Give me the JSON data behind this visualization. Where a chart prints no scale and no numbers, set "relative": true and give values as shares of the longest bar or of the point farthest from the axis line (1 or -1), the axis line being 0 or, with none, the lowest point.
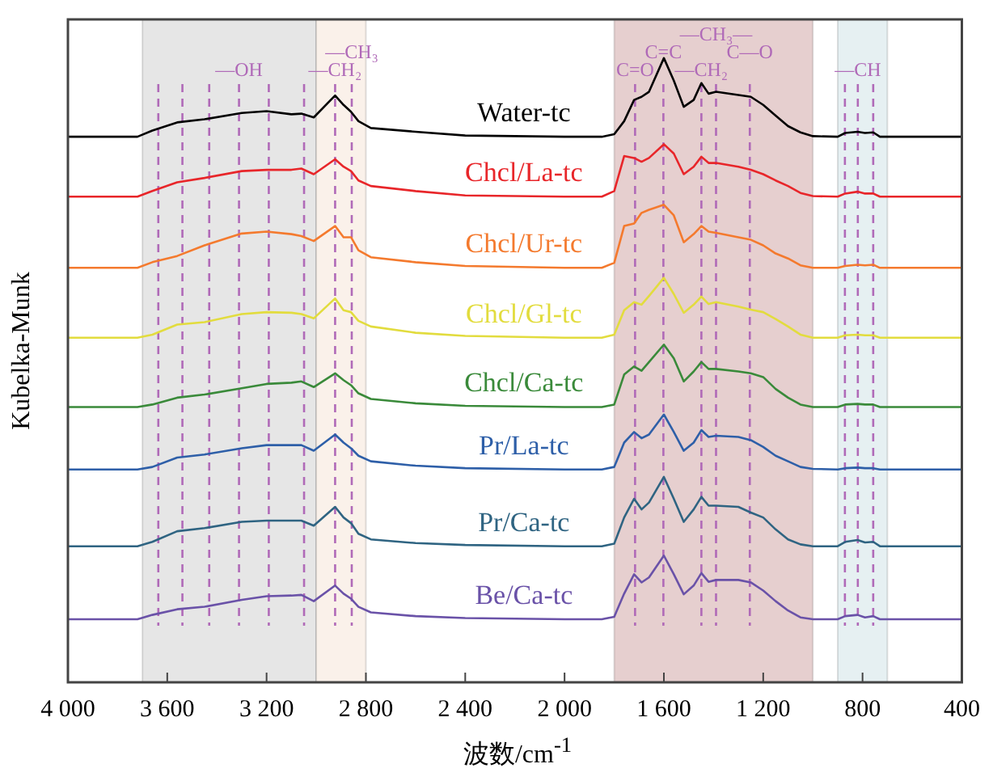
{
  "chart_data": {
    "type": "line",
    "relative": true,
    "xlabel": "波数/cm$^{-1}$",
    "ylabel": "Kubelka-Munk",
    "xlim": [
      4000,
      400
    ],
    "xticks": [
      {
        "value": 4000,
        "label": "4 000"
      },
      {
        "value": 3600,
        "label": "3 600"
      },
      {
        "value": 3200,
        "label": "3 200"
      },
      {
        "value": 2800,
        "label": "2 800"
      },
      {
        "value": 2400,
        "label": "2 400"
      },
      {
        "value": 2000,
        "label": "2 000"
      },
      {
        "value": 1600,
        "label": "1 600"
      },
      {
        "value": 1200,
        "label": "1 200"
      },
      800,
      400
    ],
    "x": [
      4000,
      3720,
      3660,
      3560,
      3450,
      3300,
      3200,
      3100,
      3060,
      3010,
      2924,
      2890,
      2860,
      2830,
      2780,
      2600,
      2400,
      2000,
      1850,
      1800,
      1760,
      1720,
      1690,
      1660,
      1600,
      1560,
      1520,
      1480,
      1449,
      1420,
      1390,
      1300,
      1250,
      1200,
      1150,
      1100,
      1050,
      1000,
      900,
      870,
      820,
      790,
      757,
      730,
      400
    ],
    "series": [
      {
        "name": "Water-tc",
        "color": "#000000",
        "values": [
          0.874,
          0.874,
          0.884,
          0.897,
          0.902,
          0.912,
          0.915,
          0.91,
          0.911,
          0.905,
          0.94,
          0.925,
          0.914,
          0.899,
          0.888,
          0.882,
          0.876,
          0.874,
          0.874,
          0.878,
          0.899,
          0.933,
          0.938,
          0.946,
          1,
          0.964,
          0.922,
          0.933,
          0.96,
          0.943,
          0.946,
          0.941,
          0.938,
          0.925,
          0.908,
          0.891,
          0.881,
          0.875,
          0.874,
          0.88,
          0.882,
          0.88,
          0.881,
          0.874,
          0.874
        ]
      },
      {
        "name": "Chcl/La-tc",
        "color": "#e8262a",
        "values": [
          0.778,
          0.778,
          0.787,
          0.801,
          0.808,
          0.819,
          0.821,
          0.821,
          0.823,
          0.814,
          0.838,
          0.826,
          0.819,
          0.804,
          0.795,
          0.787,
          0.78,
          0.778,
          0.778,
          0.787,
          0.843,
          0.84,
          0.834,
          0.84,
          0.862,
          0.847,
          0.814,
          0.826,
          0.842,
          0.832,
          0.832,
          0.826,
          0.821,
          0.814,
          0.804,
          0.795,
          0.784,
          0.779,
          0.778,
          0.783,
          0.786,
          0.783,
          0.783,
          0.778,
          0.778
        ]
      },
      {
        "name": "Chcl/Ur-tc",
        "color": "#f47a2e",
        "values": [
          0.664,
          0.664,
          0.673,
          0.683,
          0.7,
          0.719,
          0.722,
          0.718,
          0.715,
          0.707,
          0.731,
          0.713,
          0.713,
          0.692,
          0.681,
          0.673,
          0.667,
          0.664,
          0.664,
          0.672,
          0.731,
          0.735,
          0.752,
          0.757,
          0.765,
          0.748,
          0.705,
          0.718,
          0.731,
          0.722,
          0.72,
          0.713,
          0.709,
          0.7,
          0.687,
          0.679,
          0.668,
          0.664,
          0.664,
          0.667,
          0.669,
          0.668,
          0.669,
          0.664,
          0.664
        ]
      },
      {
        "name": "Chcl/Gl-tc",
        "color": "#e2dc3e",
        "values": [
          0.552,
          0.552,
          0.557,
          0.573,
          0.577,
          0.59,
          0.593,
          0.592,
          0.59,
          0.583,
          0.615,
          0.596,
          0.593,
          0.579,
          0.57,
          0.56,
          0.555,
          0.552,
          0.552,
          0.557,
          0.596,
          0.609,
          0.605,
          0.619,
          0.648,
          0.622,
          0.592,
          0.605,
          0.618,
          0.606,
          0.609,
          0.602,
          0.597,
          0.593,
          0.582,
          0.57,
          0.557,
          0.552,
          0.552,
          0.556,
          0.557,
          0.556,
          0.556,
          0.552,
          0.552
        ]
      },
      {
        "name": "Chcl/Ca-tc",
        "color": "#3a8a3a",
        "values": [
          0.441,
          0.441,
          0.445,
          0.456,
          0.461,
          0.471,
          0.478,
          0.48,
          0.482,
          0.473,
          0.495,
          0.484,
          0.476,
          0.463,
          0.454,
          0.447,
          0.443,
          0.441,
          0.441,
          0.445,
          0.493,
          0.506,
          0.499,
          0.513,
          0.541,
          0.519,
          0.482,
          0.498,
          0.513,
          0.502,
          0.502,
          0.498,
          0.495,
          0.489,
          0.47,
          0.456,
          0.445,
          0.441,
          0.441,
          0.445,
          0.446,
          0.445,
          0.445,
          0.441,
          0.441
        ]
      },
      {
        "name": "Pr/La-tc",
        "color": "#2e5fa8",
        "values": [
          0.341,
          0.341,
          0.345,
          0.36,
          0.365,
          0.375,
          0.38,
          0.38,
          0.38,
          0.371,
          0.397,
          0.384,
          0.375,
          0.363,
          0.354,
          0.347,
          0.343,
          0.341,
          0.341,
          0.345,
          0.384,
          0.401,
          0.391,
          0.397,
          0.429,
          0.401,
          0.371,
          0.384,
          0.404,
          0.393,
          0.395,
          0.393,
          0.388,
          0.377,
          0.363,
          0.354,
          0.345,
          0.342,
          0.341,
          0.343,
          0.344,
          0.343,
          0.343,
          0.341,
          0.341
        ]
      },
      {
        "name": "Pr/Ca-tc",
        "color": "#2f6482",
        "values": [
          0.218,
          0.218,
          0.225,
          0.242,
          0.247,
          0.257,
          0.259,
          0.259,
          0.259,
          0.251,
          0.281,
          0.264,
          0.255,
          0.238,
          0.229,
          0.223,
          0.22,
          0.218,
          0.218,
          0.222,
          0.264,
          0.294,
          0.277,
          0.288,
          0.329,
          0.294,
          0.257,
          0.277,
          0.297,
          0.283,
          0.283,
          0.281,
          0.272,
          0.264,
          0.245,
          0.229,
          0.221,
          0.218,
          0.218,
          0.225,
          0.228,
          0.224,
          0.225,
          0.218,
          0.218
        ]
      },
      {
        "name": "Be/Ca-tc",
        "color": "#6a52a8",
        "values": [
          0.101,
          0.101,
          0.108,
          0.117,
          0.121,
          0.132,
          0.138,
          0.139,
          0.14,
          0.13,
          0.155,
          0.142,
          0.134,
          0.121,
          0.112,
          0.106,
          0.103,
          0.101,
          0.101,
          0.105,
          0.142,
          0.173,
          0.16,
          0.168,
          0.203,
          0.173,
          0.141,
          0.155,
          0.175,
          0.161,
          0.164,
          0.164,
          0.16,
          0.147,
          0.13,
          0.115,
          0.104,
          0.101,
          0.101,
          0.106,
          0.108,
          0.104,
          0.106,
          0.101,
          0.101
        ]
      }
    ],
    "bands": [
      {
        "axis": "x",
        "from": 3700,
        "to": 3000,
        "color": "#e6e6e6"
      },
      {
        "axis": "x",
        "from": 3000,
        "to": 2800,
        "color": "#faf1ea"
      },
      {
        "axis": "x",
        "from": 1800,
        "to": 1000,
        "color": "#e6cfcf"
      },
      {
        "axis": "x",
        "from": 900,
        "to": 700,
        "color": "#e6f0f2"
      }
    ],
    "ref_lines": [
      {
        "axis": "x",
        "value": 3636,
        "color": "#b06ab8",
        "line_style": "dashed"
      },
      {
        "axis": "x",
        "value": 3539,
        "color": "#b06ab8",
        "line_style": "dashed"
      },
      {
        "axis": "x",
        "value": 3431,
        "color": "#b06ab8",
        "line_style": "dashed"
      },
      {
        "axis": "x",
        "value": 3311,
        "color": "#b06ab8",
        "line_style": "dashed",
        "label": "—OH"
      },
      {
        "axis": "x",
        "value": 3191,
        "color": "#b06ab8",
        "line_style": "dashed"
      },
      {
        "axis": "x",
        "value": 3049,
        "color": "#b06ab8",
        "line_style": "dashed"
      },
      {
        "axis": "x",
        "value": 2924,
        "color": "#b06ab8",
        "line_style": "dashed",
        "label": "—CH₂"
      },
      {
        "axis": "x",
        "value": 2857,
        "color": "#b06ab8",
        "line_style": "dashed",
        "label": "—CH₃"
      },
      {
        "axis": "x",
        "value": 1716,
        "color": "#b06ab8",
        "line_style": "dashed",
        "label": "C=O"
      },
      {
        "axis": "x",
        "value": 1602,
        "color": "#b06ab8",
        "line_style": "dashed",
        "label": "C=C"
      },
      {
        "axis": "x",
        "value": 1449,
        "color": "#b06ab8",
        "line_style": "dashed",
        "label": "—CH₂"
      },
      {
        "axis": "x",
        "value": 1390,
        "color": "#b06ab8",
        "line_style": "dashed",
        "label": "—CH₃—"
      },
      {
        "axis": "x",
        "value": 1254,
        "color": "#b06ab8",
        "line_style": "dashed",
        "label": "C—O"
      },
      {
        "axis": "x",
        "value": 871,
        "color": "#b06ab8",
        "line_style": "dashed"
      },
      {
        "axis": "x",
        "value": 819,
        "color": "#b06ab8",
        "line_style": "dashed",
        "label": "—CH"
      },
      {
        "axis": "x",
        "value": 757,
        "color": "#b06ab8",
        "line_style": "dashed"
      }
    ]
  }
}
